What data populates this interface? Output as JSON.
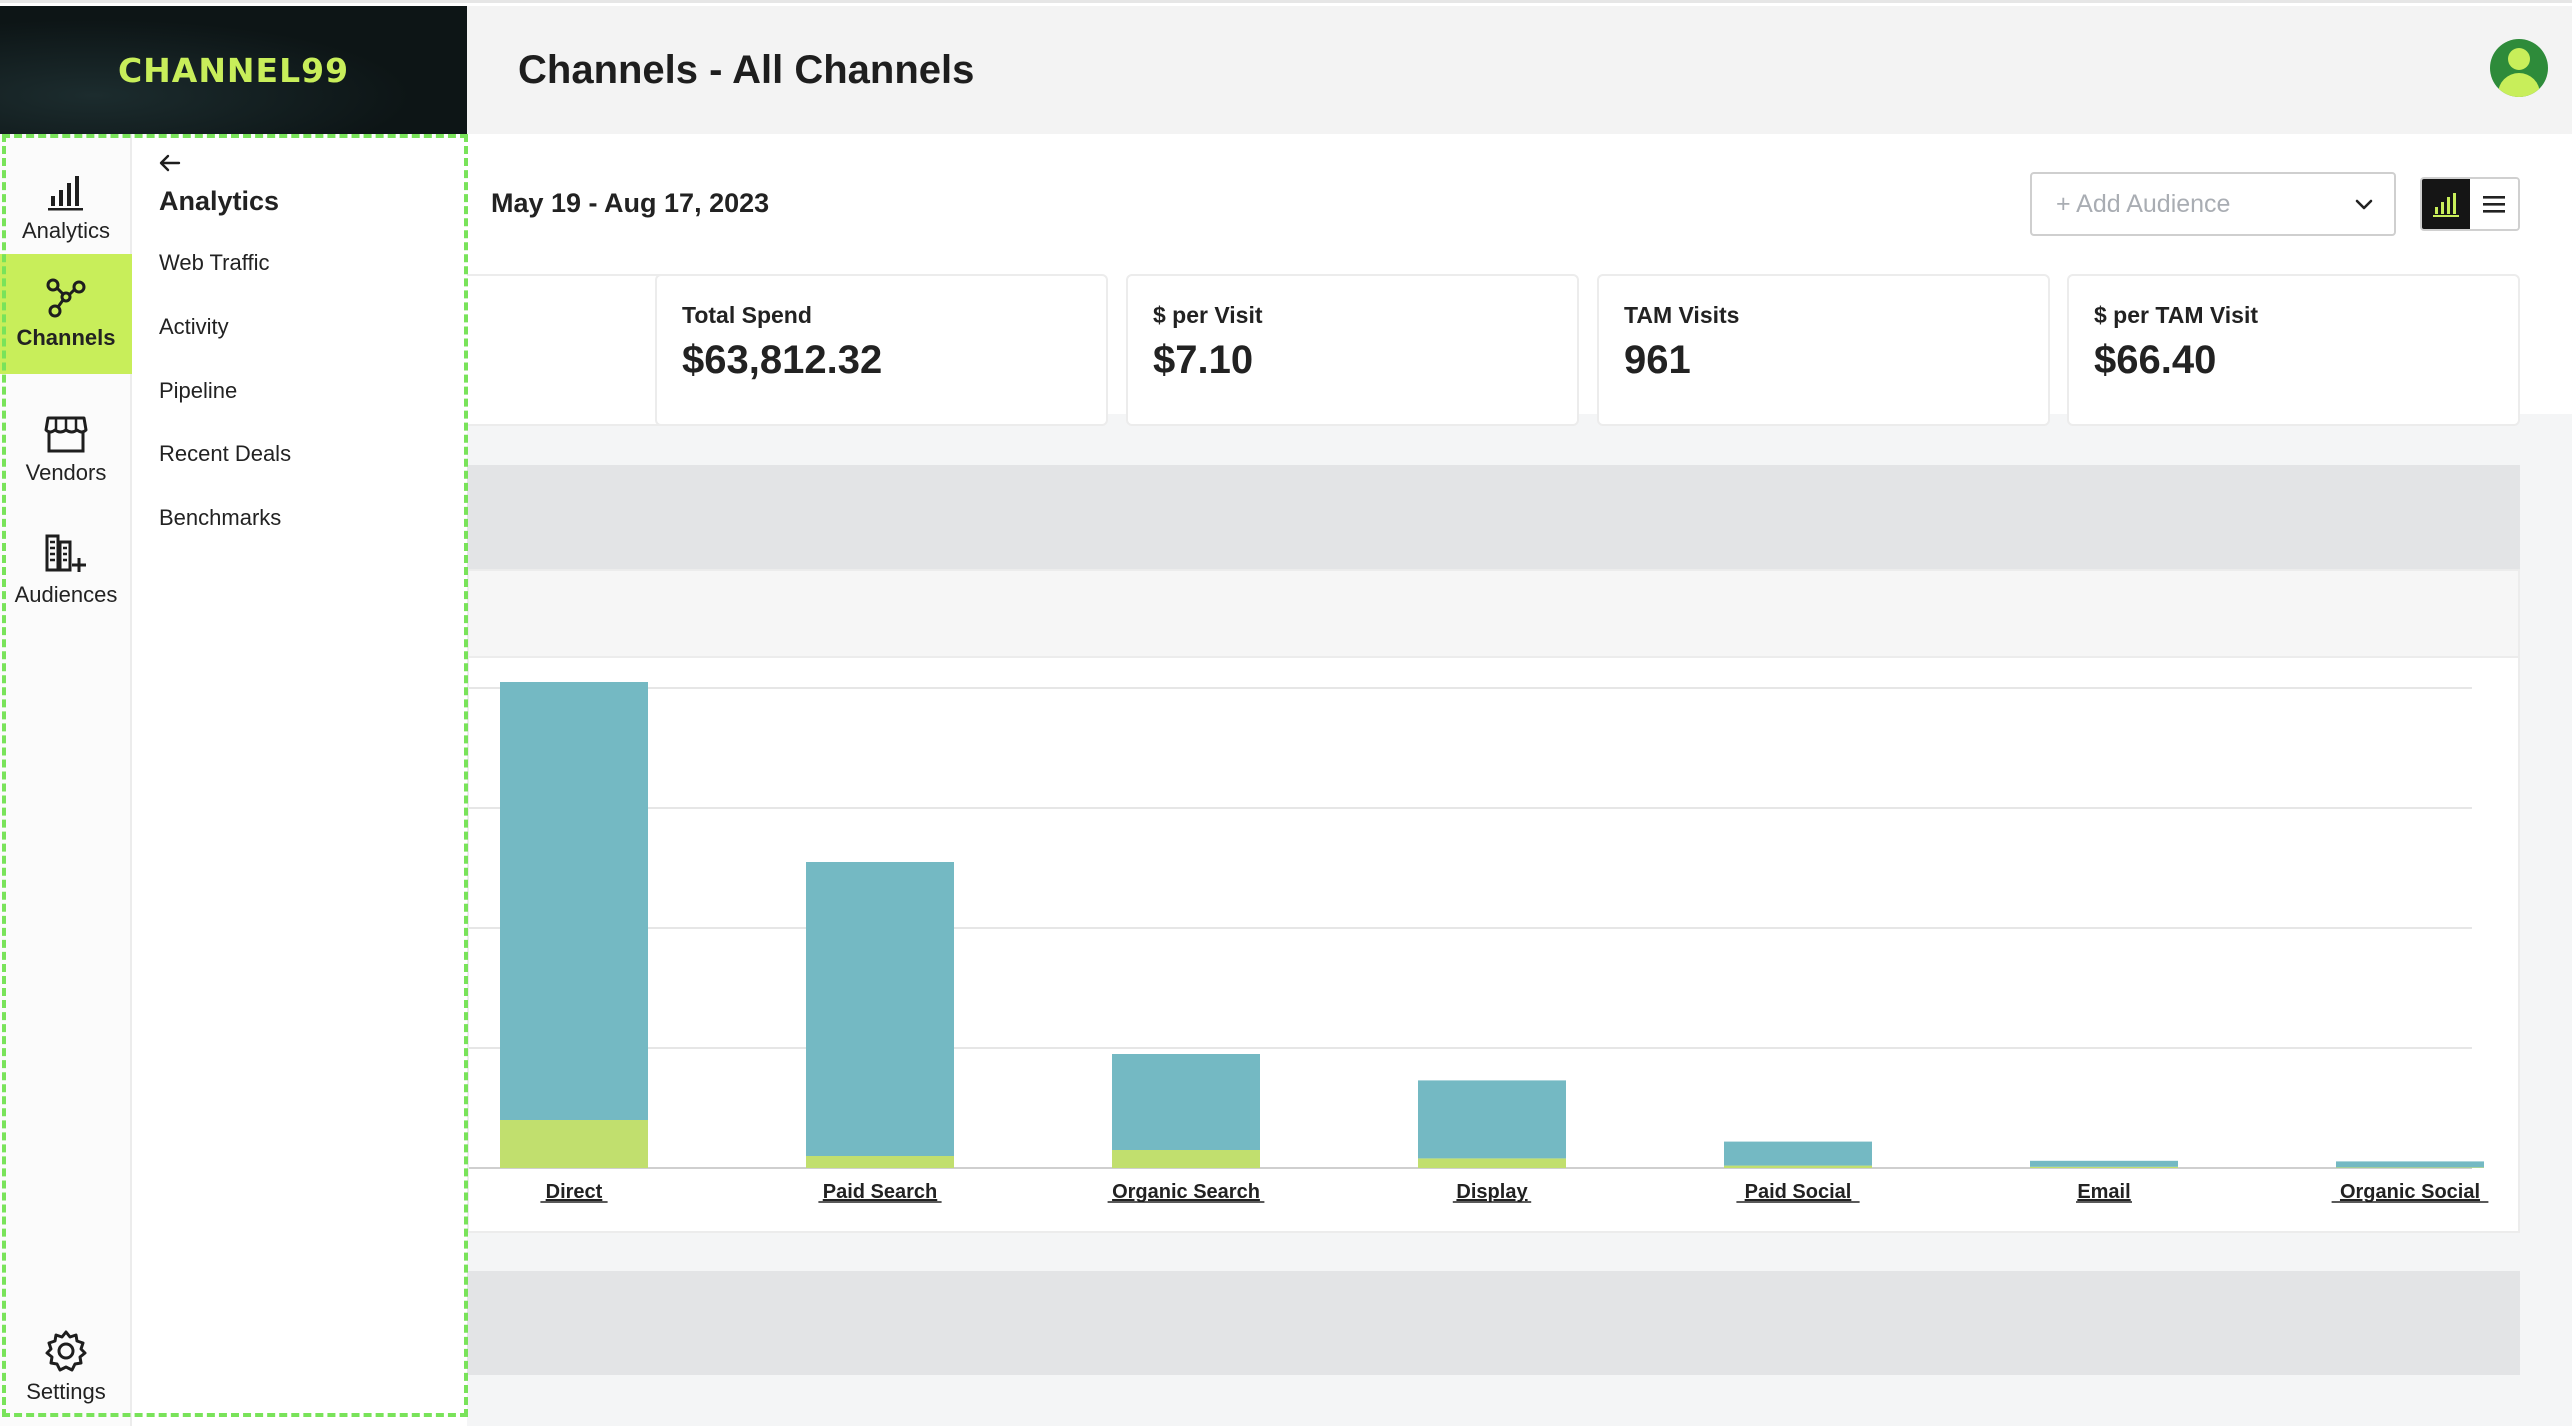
{
  "app": {
    "logo_text": "CHANNEL99",
    "page_title": "Channels - All Channels"
  },
  "nav": {
    "rail": [
      {
        "label": "Analytics",
        "icon": "bar-chart-icon",
        "active": false
      },
      {
        "label": "Channels",
        "icon": "network-icon",
        "active": true
      },
      {
        "label": "Vendors",
        "icon": "storefront-icon",
        "active": false
      },
      {
        "label": "Audiences",
        "icon": "building-plus-icon",
        "active": false
      }
    ],
    "settings_label": "Settings",
    "submenu": {
      "title": "Analytics",
      "items": [
        "Web Traffic",
        "Activity",
        "Pipeline",
        "Recent Deals",
        "Benchmarks"
      ]
    }
  },
  "filters": {
    "date_range": "May 19 - Aug 17, 2023",
    "audience_placeholder": "+ Add Audience"
  },
  "kpis": [
    {
      "label": "Total Spend",
      "value": "$63,812.32"
    },
    {
      "label": "$ per Visit",
      "value": "$7.10"
    },
    {
      "label": "TAM Visits",
      "value": "961"
    },
    {
      "label": "$ per TAM Visit",
      "value": "$66.40"
    }
  ],
  "colors": {
    "accent": "#c8ee5a",
    "bar_primary": "#74b9c3",
    "bar_secondary": "#c1df6e",
    "focus_outline": "#79e35a"
  },
  "chart_data": {
    "type": "bar",
    "stacked": true,
    "categories": [
      "Direct",
      "Paid Search",
      "Organic Search",
      "Display",
      "Paid Social",
      "Email",
      "Organic Social"
    ],
    "series": [
      {
        "values": [
          0.4,
          0.1,
          0.15,
          0.08,
          0.02,
          0.01,
          0.005
        ]
      },
      {
        "values": [
          3.65,
          2.45,
          0.8,
          0.65,
          0.2,
          0.05,
          0.05
        ]
      }
    ],
    "ylim": [
      0,
      4
    ],
    "grid": true
  }
}
